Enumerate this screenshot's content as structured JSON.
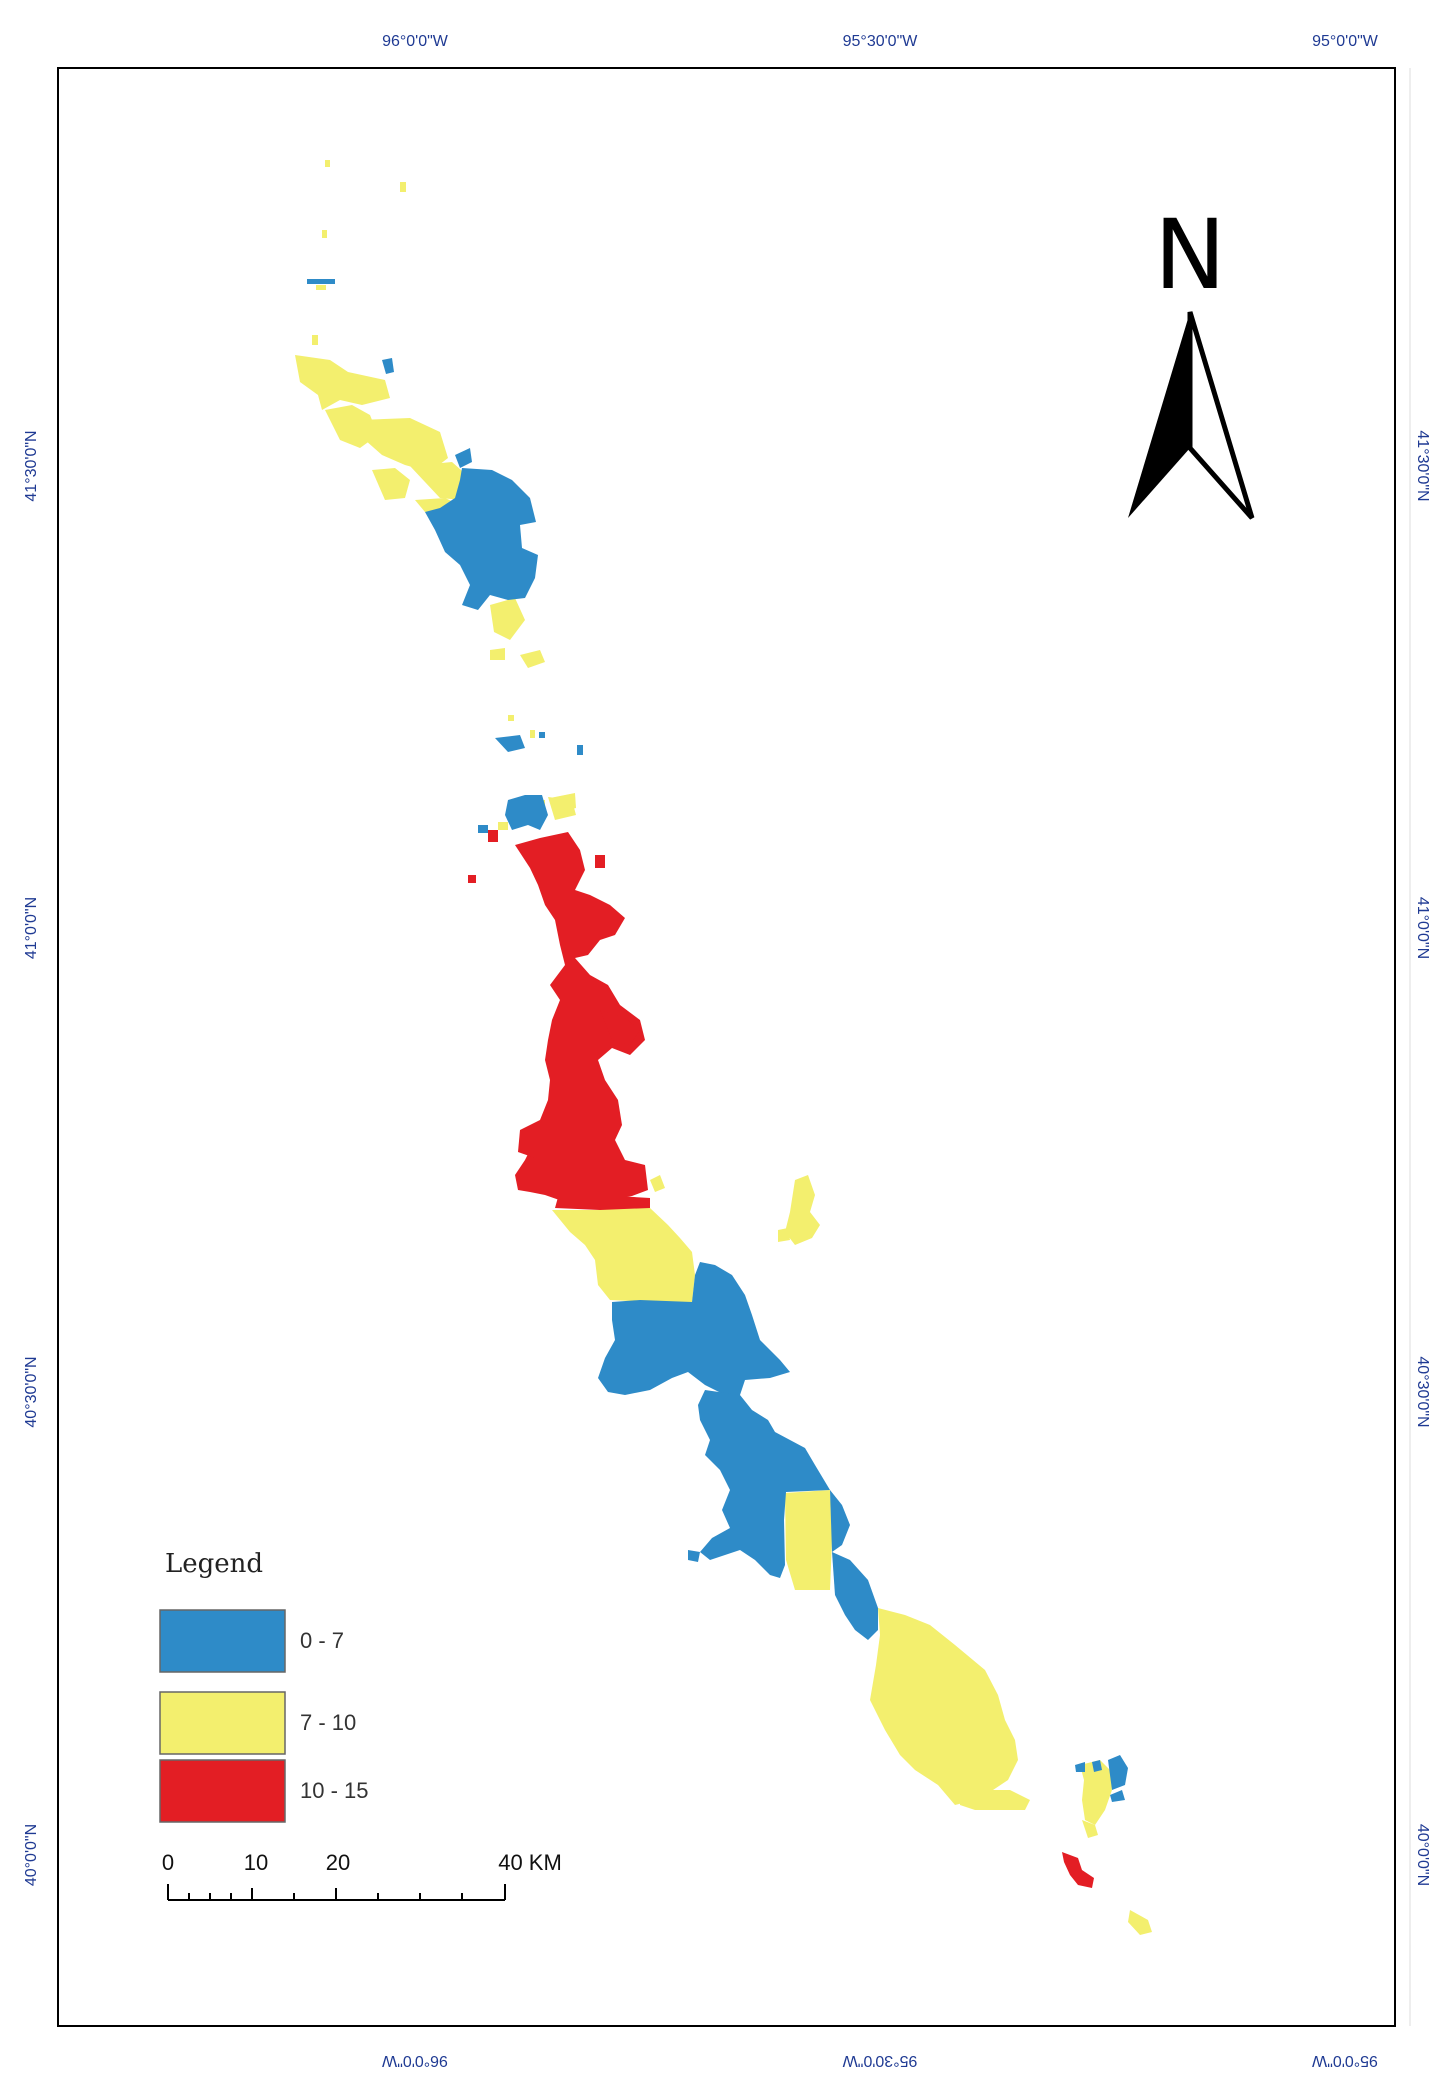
{
  "map": {
    "top_longitudes": [
      "96°0'0\"W",
      "95°30'0\"W",
      "95°0'0\"W"
    ],
    "bottom_longitudes": [
      "96°0'0\"W",
      "95°30'0\"W",
      "95°0'0\"W"
    ],
    "left_latitudes": [
      "41°30'0\"N",
      "41°0'0\"N",
      "40°30'0\"N",
      "40°0'0\"N"
    ],
    "right_latitudes": [
      "41°30'0\"N",
      "41°0'0\"N",
      "40°30'0\"N",
      "40°0'0\"N"
    ]
  },
  "north_arrow": {
    "letter": "N"
  },
  "legend": {
    "title": "Legend",
    "items": [
      {
        "label": "0 - 7",
        "color": "#2e8bc8"
      },
      {
        "label": "7 - 10",
        "color": "#f3ef6e"
      },
      {
        "label": "10 - 15",
        "color": "#e31e24"
      }
    ]
  },
  "scale_bar": {
    "ticks": [
      "0",
      "10",
      "20",
      "40 KM"
    ]
  }
}
